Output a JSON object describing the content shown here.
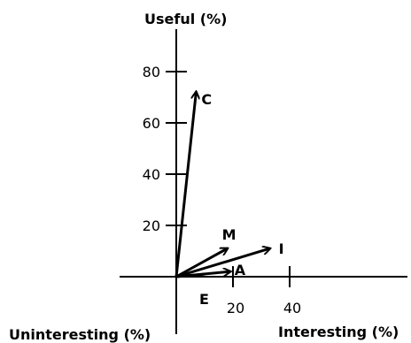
{
  "chart_data": {
    "type": "scatter",
    "title": "",
    "ylabel": "Useful  (%)",
    "xlabel_positive": "Interesting  (%)",
    "xlabel_negative": "Uninteresting (%)",
    "x_ticks": [
      20,
      40
    ],
    "y_ticks": [
      20,
      40,
      60,
      80
    ],
    "xlim": [
      -20,
      45
    ],
    "ylim": [
      -15,
      90
    ],
    "vectors": [
      {
        "label": "C",
        "x": 7,
        "y": 72
      },
      {
        "label": "M",
        "x": 18,
        "y": 11
      },
      {
        "label": "I",
        "x": 33,
        "y": 11
      },
      {
        "label": "A",
        "x": 19,
        "y": 2
      },
      {
        "label": "E",
        "x": 10,
        "y": 1
      }
    ]
  }
}
